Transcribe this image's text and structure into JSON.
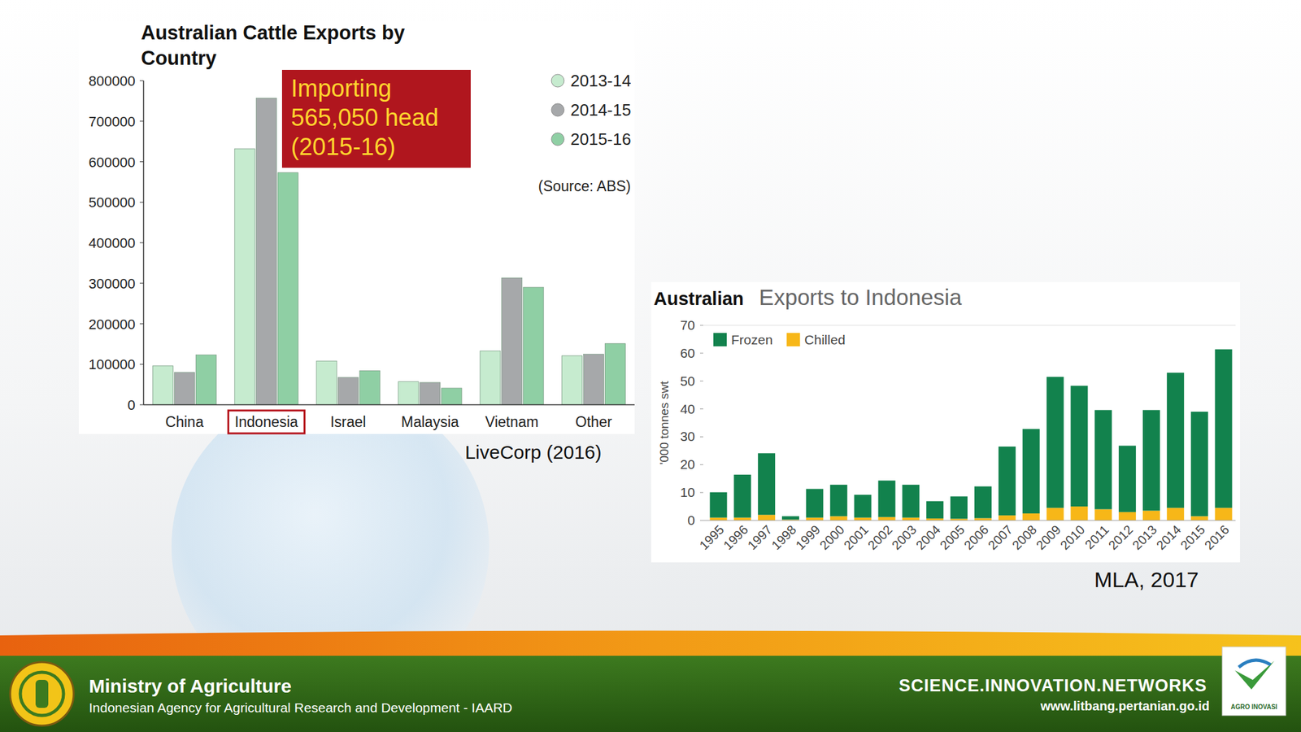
{
  "chart_data": [
    {
      "type": "bar",
      "title": "Australian Cattle Exports by Country",
      "categories": [
        "China",
        "Indonesia",
        "Israel",
        "Malaysia",
        "Vietnam",
        "Other"
      ],
      "series": [
        {
          "name": "2013-14",
          "color": "#c6ebcf",
          "values": [
            96000,
            632000,
            108000,
            57000,
            133000,
            121000
          ]
        },
        {
          "name": "2014-15",
          "color": "#a6a8aa",
          "values": [
            80000,
            757000,
            67500,
            55000,
            313000,
            125000
          ]
        },
        {
          "name": "2015-16",
          "color": "#8fcfa4",
          "values": [
            123000,
            573000,
            84000,
            41000,
            290000,
            151000
          ]
        }
      ],
      "ylim": [
        0,
        800000
      ],
      "yticks": [
        0,
        100000,
        200000,
        300000,
        400000,
        500000,
        600000,
        700000,
        800000
      ],
      "grid": false,
      "legend": "top-right",
      "annotation": [
        "Importing",
        "565,050 head",
        "(2015-16)"
      ],
      "source": "(Source: ABS)",
      "caption": "LiveCorp (2016)"
    },
    {
      "type": "bar",
      "stacked": true,
      "title": "Australian",
      "subtitle": "Exports to Indonesia",
      "y_label": "'000 tonnes swt",
      "categories": [
        "1995",
        "1996",
        "1997",
        "1998",
        "1999",
        "2000",
        "2001",
        "2002",
        "2003",
        "2004",
        "2005",
        "2006",
        "2007",
        "2008",
        "2009",
        "2010",
        "2011",
        "2012",
        "2013",
        "2014",
        "2015",
        "2016"
      ],
      "series": [
        {
          "name": "Frozen",
          "color": "#12824d",
          "values": [
            9.1,
            15.4,
            22.1,
            1.2,
            10.3,
            11.3,
            8.2,
            13.1,
            11.8,
            6.2,
            8.0,
            11.4,
            24.7,
            30.3,
            47.0,
            43.3,
            35.6,
            23.8,
            36.1,
            48.5,
            37.5,
            56.9
          ]
        },
        {
          "name": "Chilled",
          "color": "#f7b718",
          "values": [
            1,
            1,
            2,
            0.3,
            1,
            1.5,
            1,
            1.2,
            1,
            0.7,
            0.6,
            0.8,
            1.8,
            2.5,
            4.5,
            5,
            4,
            3,
            3.5,
            4.5,
            1.5,
            4.5
          ]
        }
      ],
      "ylim": [
        0,
        70
      ],
      "yticks": [
        0,
        10,
        20,
        30,
        40,
        50,
        60,
        70
      ],
      "grid": false,
      "legend": "top-left",
      "caption": "MLA, 2017"
    }
  ],
  "footer": {
    "ministry": "Ministry of Agriculture",
    "agency": "Indonesian Agency for Agricultural Research and Development - IAARD",
    "tagline": "SCIENCE.INNOVATION.NETWORKS",
    "url": "www.litbang.pertanian.go.id",
    "logo_text": "AGRO INOVASI"
  }
}
